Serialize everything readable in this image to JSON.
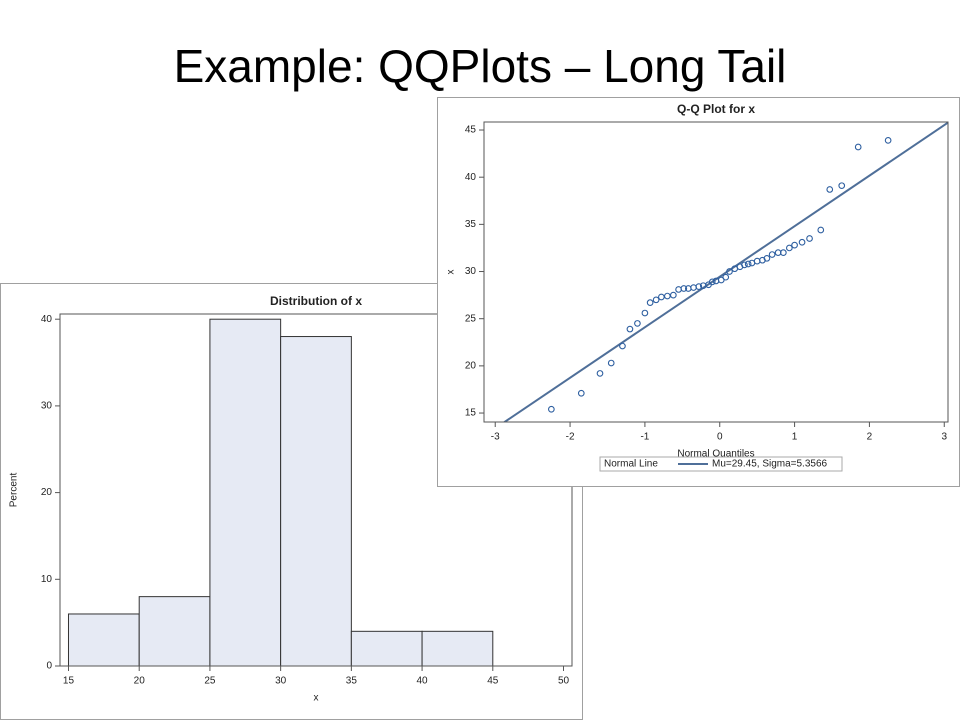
{
  "title": "Example: QQPlots – Long Tail",
  "chart_data": [
    {
      "type": "histogram",
      "title": "Distribution of x",
      "x_label": "x",
      "y_label": "Percent",
      "bins": [
        15,
        20,
        25,
        30,
        35,
        40,
        45
      ],
      "values": [
        6,
        8,
        40,
        38,
        4,
        4
      ],
      "color": "#e6eaf4",
      "xlim": [
        14.4,
        50.6
      ],
      "xticks": [
        15,
        20,
        25,
        30,
        35,
        40,
        45,
        50
      ],
      "ylim": [
        0,
        40.6
      ],
      "yticks": [
        0,
        10,
        20,
        30,
        40
      ]
    },
    {
      "type": "scatter",
      "title": "Q-Q Plot for x",
      "x_label": "Normal Quantiles",
      "y_label": "x",
      "color": "#2e5fa0",
      "x": [
        -2.25,
        -1.85,
        -1.6,
        -1.45,
        -1.3,
        -1.2,
        -1.1,
        -1.0,
        -0.93,
        -0.85,
        -0.78,
        -0.7,
        -0.62,
        -0.55,
        -0.48,
        -0.42,
        -0.35,
        -0.28,
        -0.22,
        -0.15,
        -0.1,
        -0.05,
        0.02,
        0.08,
        0.13,
        0.2,
        0.27,
        0.33,
        0.38,
        0.43,
        0.5,
        0.57,
        0.63,
        0.7,
        0.78,
        0.85,
        0.93,
        1.0,
        1.1,
        1.2,
        1.35,
        1.47,
        1.63,
        1.85,
        2.25
      ],
      "values": [
        15.4,
        17.1,
        19.2,
        20.3,
        22.1,
        23.9,
        24.5,
        25.6,
        26.7,
        27.0,
        27.3,
        27.4,
        27.5,
        28.1,
        28.2,
        28.2,
        28.3,
        28.4,
        28.5,
        28.6,
        28.9,
        29.0,
        29.1,
        29.4,
        30.0,
        30.3,
        30.5,
        30.7,
        30.8,
        30.9,
        31.1,
        31.2,
        31.4,
        31.8,
        32.0,
        32.0,
        32.5,
        32.8,
        33.1,
        33.5,
        34.4,
        38.7,
        39.1,
        43.2,
        43.9
      ],
      "xlim": [
        -3.15,
        3.05
      ],
      "xticks": [
        -3,
        -2,
        -1,
        0,
        1,
        2,
        3
      ],
      "ylim": [
        14.05,
        45.85
      ],
      "yticks": [
        15,
        20,
        25,
        30,
        35,
        40,
        45
      ],
      "reference_line": {
        "legend_title": "Normal Line",
        "label": "Mu=29.45, Sigma=5.3566",
        "mu": 29.45,
        "sigma": 5.3566,
        "color": "#4f6f99"
      }
    }
  ]
}
